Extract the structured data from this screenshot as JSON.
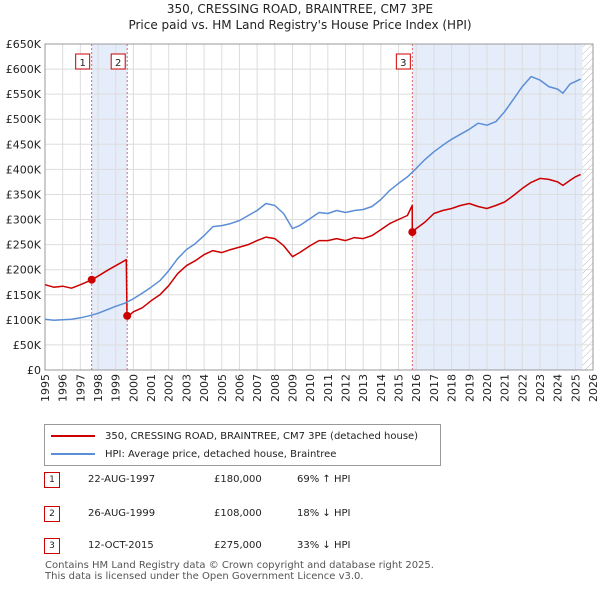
{
  "title": "350, CRESSING ROAD, BRAINTREE, CM7 3PE",
  "subtitle": "Price paid vs. HM Land Registry's House Price Index (HPI)",
  "colors": {
    "property": "#cc0000",
    "hpi": "#5b8ed6",
    "shade": "#e5ecfa",
    "grid": "#dddddd",
    "marker_line": "#d66"
  },
  "chart_data": {
    "type": "line",
    "title": "350, CRESSING ROAD, BRAINTREE, CM7 3PE",
    "subtitle": "Price paid vs. HM Land Registry's House Price Index (HPI)",
    "xlim": [
      1995,
      2026
    ],
    "ylim": [
      0,
      650000
    ],
    "yticks": [
      0,
      50000,
      100000,
      150000,
      200000,
      250000,
      300000,
      350000,
      400000,
      450000,
      500000,
      550000,
      600000,
      650000
    ],
    "ytick_labels": [
      "£0",
      "£50K",
      "£100K",
      "£150K",
      "£200K",
      "£250K",
      "£300K",
      "£350K",
      "£400K",
      "£450K",
      "£500K",
      "£550K",
      "£600K",
      "£650K"
    ],
    "xticks": [
      1995,
      1996,
      1997,
      1998,
      1999,
      2000,
      2001,
      2002,
      2003,
      2004,
      2005,
      2006,
      2007,
      2008,
      2009,
      2010,
      2011,
      2012,
      2013,
      2014,
      2015,
      2016,
      2017,
      2018,
      2019,
      2020,
      2021,
      2022,
      2023,
      2024,
      2025,
      2026
    ],
    "grid": true,
    "shaded_ranges": [
      [
        1997.64,
        1999.65
      ],
      [
        2015.78,
        2025.4
      ]
    ],
    "future_hatch_start": 2025.4,
    "series": [
      {
        "name": "350, CRESSING ROAD, BRAINTREE, CM7 3PE (detached house)",
        "color": "#cc0000",
        "points": [
          [
            1995.0,
            170000
          ],
          [
            1995.5,
            165000
          ],
          [
            1996.0,
            167000
          ],
          [
            1996.5,
            163000
          ],
          [
            1997.0,
            170000
          ],
          [
            1997.4,
            176000
          ],
          [
            1997.64,
            180000
          ],
          [
            1998.0,
            187000
          ],
          [
            1998.5,
            198000
          ],
          [
            1999.0,
            208000
          ],
          [
            1999.3,
            214000
          ],
          [
            1999.6,
            220000
          ],
          [
            1999.64,
            108000
          ],
          [
            1999.8,
            110000
          ],
          [
            2000.0,
            116000
          ],
          [
            2000.5,
            124000
          ],
          [
            2001.0,
            138000
          ],
          [
            2001.5,
            150000
          ],
          [
            2002.0,
            168000
          ],
          [
            2002.5,
            192000
          ],
          [
            2003.0,
            208000
          ],
          [
            2003.5,
            218000
          ],
          [
            2004.0,
            230000
          ],
          [
            2004.5,
            238000
          ],
          [
            2005.0,
            234000
          ],
          [
            2005.5,
            240000
          ],
          [
            2006.0,
            245000
          ],
          [
            2006.5,
            250000
          ],
          [
            2007.0,
            258000
          ],
          [
            2007.5,
            265000
          ],
          [
            2008.0,
            262000
          ],
          [
            2008.5,
            248000
          ],
          [
            2009.0,
            226000
          ],
          [
            2009.4,
            234000
          ],
          [
            2010.0,
            248000
          ],
          [
            2010.5,
            258000
          ],
          [
            2011.0,
            258000
          ],
          [
            2011.5,
            262000
          ],
          [
            2012.0,
            258000
          ],
          [
            2012.5,
            264000
          ],
          [
            2013.0,
            262000
          ],
          [
            2013.5,
            268000
          ],
          [
            2014.0,
            280000
          ],
          [
            2014.5,
            292000
          ],
          [
            2015.0,
            300000
          ],
          [
            2015.5,
            308000
          ],
          [
            2015.77,
            328000
          ],
          [
            2015.78,
            275000
          ],
          [
            2016.0,
            282000
          ],
          [
            2016.5,
            295000
          ],
          [
            2017.0,
            312000
          ],
          [
            2017.5,
            318000
          ],
          [
            2018.0,
            322000
          ],
          [
            2018.5,
            328000
          ],
          [
            2019.0,
            332000
          ],
          [
            2019.5,
            326000
          ],
          [
            2020.0,
            322000
          ],
          [
            2020.5,
            328000
          ],
          [
            2021.0,
            335000
          ],
          [
            2021.5,
            348000
          ],
          [
            2022.0,
            362000
          ],
          [
            2022.5,
            374000
          ],
          [
            2023.0,
            382000
          ],
          [
            2023.5,
            380000
          ],
          [
            2024.0,
            375000
          ],
          [
            2024.3,
            368000
          ],
          [
            2024.7,
            378000
          ],
          [
            2025.0,
            385000
          ],
          [
            2025.3,
            390000
          ]
        ]
      },
      {
        "name": "HPI: Average price, detached house, Braintree",
        "color": "#5b8ed6",
        "points": [
          [
            1995.0,
            101000
          ],
          [
            1995.5,
            99000
          ],
          [
            1996.0,
            100000
          ],
          [
            1996.5,
            101000
          ],
          [
            1997.0,
            104000
          ],
          [
            1997.5,
            108000
          ],
          [
            1998.0,
            113000
          ],
          [
            1998.5,
            120000
          ],
          [
            1999.0,
            127000
          ],
          [
            1999.5,
            133000
          ],
          [
            2000.0,
            142000
          ],
          [
            2000.5,
            153000
          ],
          [
            2001.0,
            165000
          ],
          [
            2001.5,
            178000
          ],
          [
            2002.0,
            198000
          ],
          [
            2002.5,
            222000
          ],
          [
            2003.0,
            240000
          ],
          [
            2003.5,
            252000
          ],
          [
            2004.0,
            268000
          ],
          [
            2004.5,
            286000
          ],
          [
            2005.0,
            288000
          ],
          [
            2005.5,
            292000
          ],
          [
            2006.0,
            298000
          ],
          [
            2006.5,
            308000
          ],
          [
            2007.0,
            318000
          ],
          [
            2007.5,
            332000
          ],
          [
            2008.0,
            328000
          ],
          [
            2008.5,
            312000
          ],
          [
            2009.0,
            282000
          ],
          [
            2009.4,
            288000
          ],
          [
            2010.0,
            302000
          ],
          [
            2010.5,
            314000
          ],
          [
            2011.0,
            312000
          ],
          [
            2011.5,
            318000
          ],
          [
            2012.0,
            314000
          ],
          [
            2012.5,
            318000
          ],
          [
            2013.0,
            320000
          ],
          [
            2013.5,
            326000
          ],
          [
            2014.0,
            340000
          ],
          [
            2014.5,
            358000
          ],
          [
            2015.0,
            372000
          ],
          [
            2015.5,
            385000
          ],
          [
            2016.0,
            402000
          ],
          [
            2016.5,
            420000
          ],
          [
            2017.0,
            435000
          ],
          [
            2017.5,
            448000
          ],
          [
            2018.0,
            460000
          ],
          [
            2018.5,
            470000
          ],
          [
            2019.0,
            480000
          ],
          [
            2019.5,
            492000
          ],
          [
            2020.0,
            488000
          ],
          [
            2020.5,
            495000
          ],
          [
            2021.0,
            515000
          ],
          [
            2021.5,
            540000
          ],
          [
            2022.0,
            565000
          ],
          [
            2022.5,
            585000
          ],
          [
            2023.0,
            578000
          ],
          [
            2023.5,
            565000
          ],
          [
            2024.0,
            560000
          ],
          [
            2024.3,
            552000
          ],
          [
            2024.7,
            570000
          ],
          [
            2025.0,
            575000
          ],
          [
            2025.3,
            580000
          ]
        ]
      }
    ],
    "sale_markers": [
      {
        "label": "1",
        "x": 1997.64,
        "y": 180000
      },
      {
        "label": "2",
        "x": 1999.65,
        "y": 108000
      },
      {
        "label": "3",
        "x": 2015.78,
        "y": 275000
      }
    ]
  },
  "legend": {
    "property_label": "350, CRESSING ROAD, BRAINTREE, CM7 3PE (detached house)",
    "hpi_label": "HPI: Average price, detached house, Braintree"
  },
  "sales": [
    {
      "num": "1",
      "date": "22-AUG-1997",
      "price": "£180,000",
      "hpi": "69% ↑ HPI"
    },
    {
      "num": "2",
      "date": "26-AUG-1999",
      "price": "£108,000",
      "hpi": "18% ↓ HPI"
    },
    {
      "num": "3",
      "date": "12-OCT-2015",
      "price": "£275,000",
      "hpi": "33% ↓ HPI"
    }
  ],
  "footer": {
    "line1": "Contains HM Land Registry data © Crown copyright and database right 2025.",
    "line2": "This data is licensed under the Open Government Licence v3.0."
  }
}
